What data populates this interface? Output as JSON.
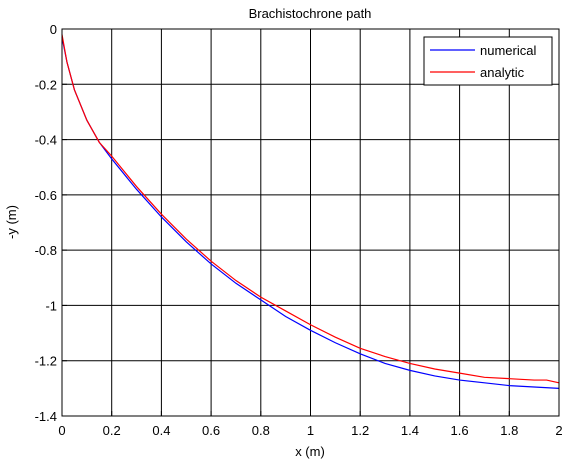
{
  "chart_data": {
    "type": "line",
    "title": "Brachistochrone path",
    "xlabel": "x (m)",
    "ylabel": "-y (m)",
    "xlim": [
      0,
      2
    ],
    "ylim": [
      -1.4,
      0
    ],
    "x_ticks": [
      "0",
      "0.2",
      "0.4",
      "0.6",
      "0.8",
      "1",
      "1.2",
      "1.4",
      "1.6",
      "1.8",
      "2"
    ],
    "y_ticks": [
      "0",
      "-0.2",
      "-0.4",
      "-0.6",
      "-0.8",
      "-1",
      "-1.2",
      "-1.4"
    ],
    "grid": true,
    "legend_position": "top-right",
    "series": [
      {
        "name": "numerical",
        "color": "#0000ff",
        "x": [
          0,
          0.02,
          0.05,
          0.1,
          0.15,
          0.2,
          0.3,
          0.4,
          0.5,
          0.6,
          0.7,
          0.8,
          0.9,
          1.0,
          1.1,
          1.2,
          1.3,
          1.4,
          1.5,
          1.6,
          1.7,
          1.8,
          1.9,
          2.0
        ],
        "y": [
          -0.03,
          -0.12,
          -0.22,
          -0.33,
          -0.41,
          -0.47,
          -0.58,
          -0.68,
          -0.77,
          -0.85,
          -0.92,
          -0.98,
          -1.04,
          -1.09,
          -1.135,
          -1.175,
          -1.21,
          -1.235,
          -1.255,
          -1.27,
          -1.28,
          -1.29,
          -1.295,
          -1.3
        ]
      },
      {
        "name": "analytic",
        "color": "#ff0000",
        "x": [
          0,
          0.02,
          0.05,
          0.1,
          0.15,
          0.2,
          0.3,
          0.4,
          0.5,
          0.6,
          0.7,
          0.8,
          0.9,
          1.0,
          1.1,
          1.2,
          1.3,
          1.4,
          1.5,
          1.6,
          1.7,
          1.8,
          1.9,
          1.95,
          2.0
        ],
        "y": [
          -0.02,
          -0.12,
          -0.22,
          -0.33,
          -0.41,
          -0.46,
          -0.57,
          -0.67,
          -0.76,
          -0.84,
          -0.91,
          -0.97,
          -1.02,
          -1.07,
          -1.115,
          -1.155,
          -1.185,
          -1.21,
          -1.23,
          -1.245,
          -1.26,
          -1.265,
          -1.27,
          -1.27,
          -1.28
        ]
      }
    ]
  }
}
